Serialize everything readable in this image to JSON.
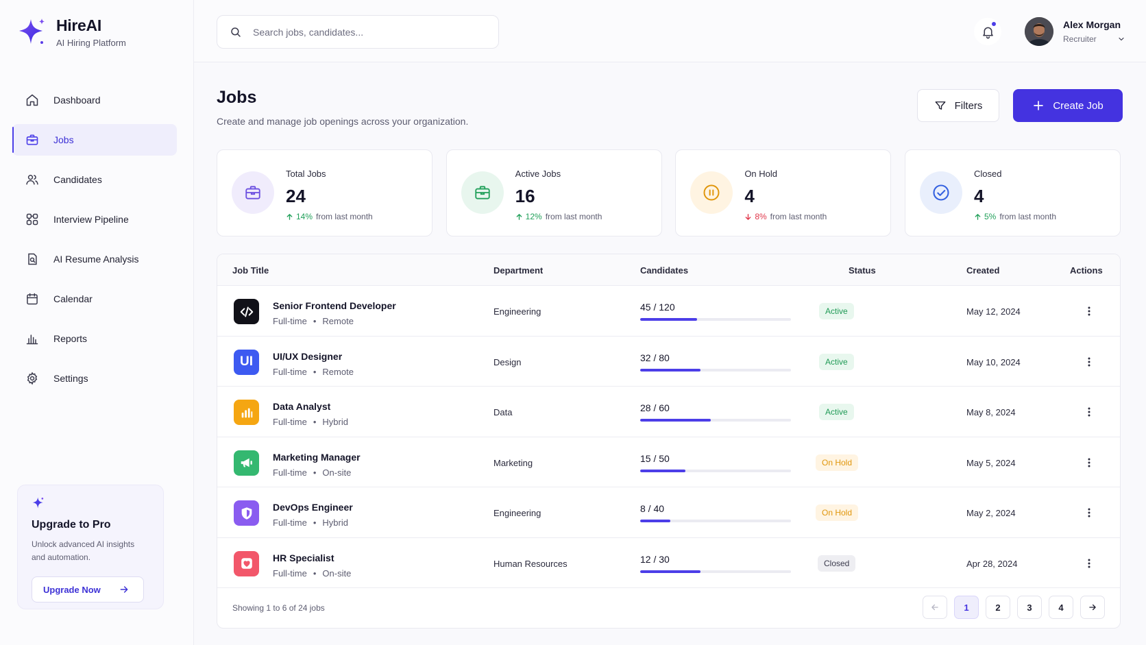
{
  "brand": {
    "name": "HireAI",
    "tagline": "AI Hiring Platform",
    "accent": "#4433e0"
  },
  "sidebar": {
    "items": [
      {
        "label": "Dashboard",
        "icon": "home-icon",
        "active": false
      },
      {
        "label": "Jobs",
        "icon": "briefcase-icon",
        "active": true
      },
      {
        "label": "Candidates",
        "icon": "users-icon",
        "active": false
      },
      {
        "label": "Interview Pipeline",
        "icon": "pipeline-icon",
        "active": false
      },
      {
        "label": "AI Resume Analysis",
        "icon": "document-search-icon",
        "active": false
      },
      {
        "label": "Calendar",
        "icon": "calendar-icon",
        "active": false
      },
      {
        "label": "Reports",
        "icon": "bar-chart-icon",
        "active": false
      },
      {
        "label": "Settings",
        "icon": "gear-icon",
        "active": false
      }
    ],
    "upgrade": {
      "title": "Upgrade to Pro",
      "text": "Unlock advanced AI insights and automation.",
      "button": "Upgrade Now"
    }
  },
  "header": {
    "search_placeholder": "Search jobs, candidates...",
    "user": {
      "name": "Alex Morgan",
      "role": "Recruiter"
    }
  },
  "page": {
    "title": "Jobs",
    "subtitle": "Create and manage job openings across your organization.",
    "filters_label": "Filters",
    "create_label": "Create Job"
  },
  "stats": [
    {
      "label": "Total Jobs",
      "value": "24",
      "delta": "14%",
      "delta_text": "from last month",
      "direction": "up",
      "icon": "briefcase-icon",
      "color": "#6b4fe0"
    },
    {
      "label": "Active Jobs",
      "value": "16",
      "delta": "12%",
      "delta_text": "from last month",
      "direction": "up",
      "icon": "briefcase-icon",
      "color": "#21a05a"
    },
    {
      "label": "On Hold",
      "value": "4",
      "delta": "8%",
      "delta_text": "from last month",
      "direction": "down",
      "icon": "pause-icon",
      "color": "#e0960c"
    },
    {
      "label": "Closed",
      "value": "4",
      "delta": "5%",
      "delta_text": "from last month",
      "direction": "up",
      "icon": "check-circle-icon",
      "color": "#3461e0"
    }
  ],
  "table": {
    "columns": [
      "Job Title",
      "Department",
      "Candidates",
      "Status",
      "Created",
      "Actions"
    ],
    "rows": [
      {
        "title": "Senior Frontend Developer",
        "type": "Full-time",
        "location": "Remote",
        "department": "Engineering",
        "candidates": "45 / 120",
        "fill": 0.375,
        "status": "Active",
        "created": "May 12, 2024",
        "icon": "code-icon",
        "icon_color": "#111118"
      },
      {
        "title": "UI/UX Designer",
        "type": "Full-time",
        "location": "Remote",
        "department": "Design",
        "candidates": "32 / 80",
        "fill": 0.4,
        "status": "Active",
        "created": "May 10, 2024",
        "icon": "ui-badge-icon",
        "icon_text": "UI",
        "icon_color": "#3d5af1"
      },
      {
        "title": "Data Analyst",
        "type": "Full-time",
        "location": "Hybrid",
        "department": "Data",
        "candidates": "28 / 60",
        "fill": 0.4667,
        "status": "Active",
        "created": "May 8, 2024",
        "icon": "bar-chart-icon",
        "icon_color": "#f5a612"
      },
      {
        "title": "Marketing Manager",
        "type": "Full-time",
        "location": "On-site",
        "department": "Marketing",
        "candidates": "15 / 50",
        "fill": 0.3,
        "status": "On Hold",
        "created": "May 5, 2024",
        "icon": "megaphone-icon",
        "icon_color": "#34b870"
      },
      {
        "title": "DevOps Engineer",
        "type": "Full-time",
        "location": "Hybrid",
        "department": "Engineering",
        "candidates": "8 / 40",
        "fill": 0.2,
        "status": "On Hold",
        "created": "May 2, 2024",
        "icon": "shield-icon",
        "icon_color": "#8a5cf0"
      },
      {
        "title": "HR Specialist",
        "type": "Full-time",
        "location": "On-site",
        "department": "Human Resources",
        "candidates": "12 / 30",
        "fill": 0.4,
        "status": "Closed",
        "created": "Apr 28, 2024",
        "icon": "heart-icon",
        "icon_color": "#f2576a"
      }
    ],
    "footer": "Showing 1 to 6 of 24 jobs",
    "pages": [
      "1",
      "2",
      "3",
      "4"
    ],
    "current_page": "1"
  }
}
